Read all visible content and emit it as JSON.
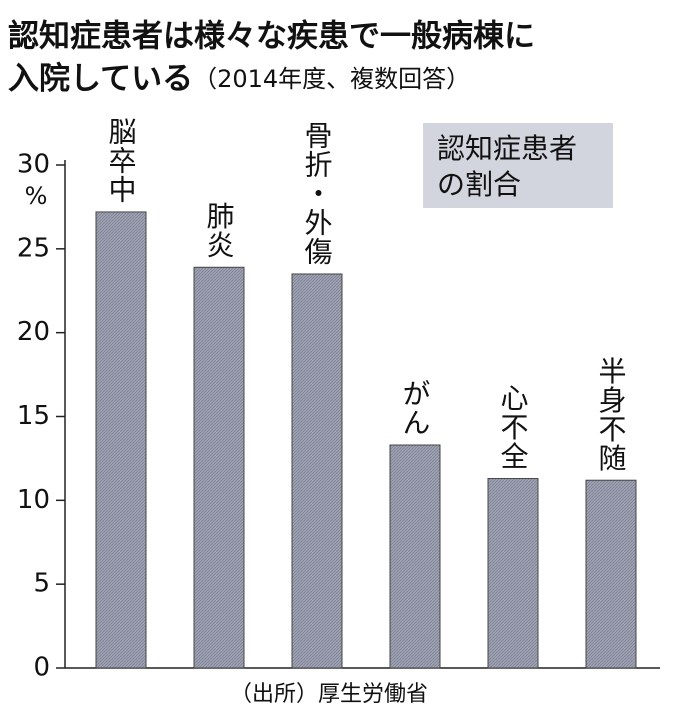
{
  "chart_data": {
    "type": "bar",
    "title": [
      "認知症患者は様々な疾患で一般病棟に",
      "入院している"
    ],
    "subtitle": "（2014年度、複数回答）",
    "y_unit": "%",
    "categories": [
      "脳卒中",
      "肺炎",
      "骨折・外傷",
      "がん",
      "心不全",
      "半身不随"
    ],
    "series": [
      {
        "name": "認知症患者の割合",
        "color": "#9ea2b3",
        "values": [
          27.2,
          23.9,
          23.5,
          13.3,
          11.3,
          11.2
        ]
      }
    ],
    "ylim": [
      0,
      30
    ],
    "yticks": [
      0,
      5,
      10,
      15,
      20,
      25,
      30
    ],
    "grid": false,
    "legend": "top-right",
    "source": "（出所）厚生労働省"
  }
}
